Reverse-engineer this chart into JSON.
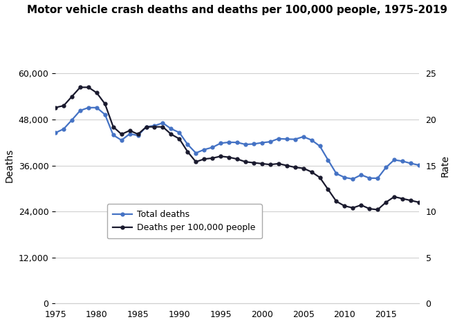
{
  "title": "Motor vehicle crash deaths and deaths per 100,000 people, 1975-2019",
  "years": [
    1975,
    1976,
    1977,
    1978,
    1979,
    1980,
    1981,
    1982,
    1983,
    1984,
    1985,
    1986,
    1987,
    1988,
    1989,
    1990,
    1991,
    1992,
    1993,
    1994,
    1995,
    1996,
    1997,
    1998,
    1999,
    2000,
    2001,
    2002,
    2003,
    2004,
    2005,
    2006,
    2007,
    2008,
    2009,
    2010,
    2011,
    2012,
    2013,
    2014,
    2015,
    2016,
    2017,
    2018,
    2019
  ],
  "total_deaths": [
    44525,
    45523,
    47878,
    50331,
    51093,
    51091,
    49301,
    43945,
    42589,
    44257,
    43825,
    46087,
    46390,
    47087,
    45582,
    44599,
    41508,
    39250,
    40150,
    40716,
    41817,
    42065,
    42013,
    41501,
    41611,
    41945,
    42196,
    43005,
    42884,
    42836,
    43510,
    42642,
    41059,
    37423,
    33883,
    32885,
    32479,
    33561,
    32719,
    32675,
    35485,
    37461,
    37133,
    36560,
    36096
  ],
  "death_rate": [
    21.3,
    21.5,
    22.5,
    23.5,
    23.5,
    22.9,
    21.7,
    19.2,
    18.4,
    18.8,
    18.4,
    19.2,
    19.2,
    19.2,
    18.4,
    17.9,
    16.5,
    15.4,
    15.7,
    15.8,
    16.0,
    15.9,
    15.7,
    15.4,
    15.3,
    15.2,
    15.1,
    15.2,
    15.0,
    14.8,
    14.7,
    14.3,
    13.7,
    12.4,
    11.1,
    10.6,
    10.4,
    10.7,
    10.3,
    10.2,
    11.0,
    11.6,
    11.4,
    11.2,
    11.0
  ],
  "total_deaths_color": "#4472c4",
  "death_rate_color": "#1a1a2e",
  "ylabel_left": "Deaths",
  "ylabel_right": "Rate",
  "ylim_left": [
    0,
    72000
  ],
  "ylim_right": [
    0,
    30.0
  ],
  "yticks_left": [
    0,
    12000,
    24000,
    36000,
    48000,
    60000
  ],
  "yticks_right": [
    0,
    5,
    10,
    15,
    20,
    25
  ],
  "background_color": "#ffffff",
  "grid_color": "#d0d0d0",
  "legend_labels": [
    "Total deaths",
    "Deaths per 100,000 people"
  ],
  "marker_size": 3.5,
  "line_width": 1.6
}
